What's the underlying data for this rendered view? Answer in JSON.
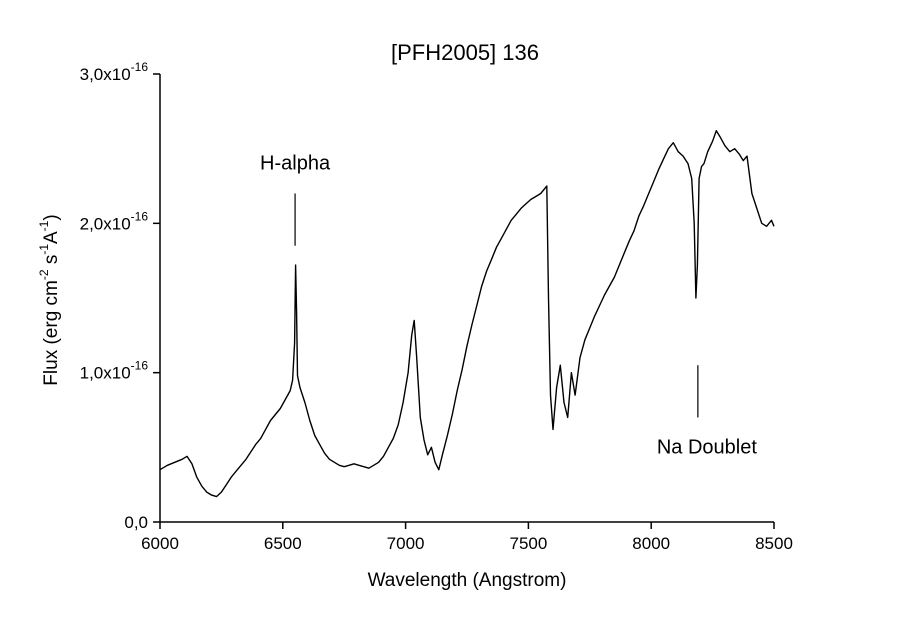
{
  "chart_data": {
    "type": "line",
    "title": "[PFH2005] 136",
    "xlabel": "Wavelength (Angstrom)",
    "ylabel": "Flux (erg cm",
    "ylabel_parts": [
      "Flux (erg cm",
      "-2",
      " s",
      "-1",
      "A",
      "-1",
      ")"
    ],
    "xlim": [
      6000,
      8500
    ],
    "ylim": [
      0,
      3e-16
    ],
    "x_ticks": [
      {
        "value": 6000,
        "label": "6000"
      },
      {
        "value": 6500,
        "label": "6500"
      },
      {
        "value": 7000,
        "label": "7000"
      },
      {
        "value": 7500,
        "label": "7500"
      },
      {
        "value": 8000,
        "label": "8000"
      },
      {
        "value": 8500,
        "label": "8500"
      }
    ],
    "y_ticks": [
      {
        "value": 0,
        "label": "0,0",
        "exp": ""
      },
      {
        "value": 1e-16,
        "label": "1,0x10",
        "exp": "-16"
      },
      {
        "value": 2e-16,
        "label": "2,0x10",
        "exp": "-16"
      },
      {
        "value": 3e-16,
        "label": "3,0x10",
        "exp": "-16"
      }
    ],
    "grid": false,
    "annotations": [
      {
        "text": "H-alpha",
        "x": 6550,
        "marker_y": [
          1.85e-16,
          2.2e-16
        ]
      },
      {
        "text": "Na Doublet",
        "x": 8190,
        "marker_y": [
          7e-17,
          1.05e-16
        ]
      }
    ],
    "series": [
      {
        "color": "#000000",
        "x": [
          6000,
          6030,
          6060,
          6090,
          6110,
          6130,
          6150,
          6170,
          6190,
          6210,
          6230,
          6250,
          6270,
          6290,
          6310,
          6330,
          6350,
          6370,
          6390,
          6410,
          6430,
          6450,
          6470,
          6490,
          6510,
          6530,
          6540,
          6548,
          6552,
          6556,
          6560,
          6570,
          6590,
          6610,
          6630,
          6650,
          6670,
          6690,
          6710,
          6730,
          6750,
          6770,
          6790,
          6810,
          6830,
          6850,
          6870,
          6890,
          6910,
          6930,
          6950,
          6970,
          6990,
          7010,
          7025,
          7035,
          7045,
          7060,
          7075,
          7090,
          7105,
          7120,
          7135,
          7150,
          7170,
          7190,
          7210,
          7230,
          7250,
          7270,
          7290,
          7310,
          7330,
          7350,
          7370,
          7390,
          7410,
          7430,
          7450,
          7470,
          7490,
          7510,
          7530,
          7550,
          7565,
          7575,
          7582,
          7590,
          7600,
          7615,
          7630,
          7645,
          7660,
          7675,
          7690,
          7710,
          7730,
          7750,
          7770,
          7790,
          7810,
          7830,
          7850,
          7870,
          7890,
          7910,
          7930,
          7950,
          7970,
          7990,
          8010,
          8030,
          8050,
          8070,
          8090,
          8110,
          8130,
          8150,
          8165,
          8175,
          8182,
          8188,
          8195,
          8205,
          8215,
          8230,
          8250,
          8265,
          8280,
          8300,
          8320,
          8340,
          8360,
          8375,
          8390,
          8410,
          8430,
          8450,
          8470,
          8490,
          8500
        ],
        "y": [
          3.5e-17,
          3.8e-17,
          4e-17,
          4.2e-17,
          4.4e-17,
          3.9e-17,
          3e-17,
          2.4e-17,
          2e-17,
          1.8e-17,
          1.7e-17,
          2e-17,
          2.5e-17,
          3e-17,
          3.4e-17,
          3.8e-17,
          4.2e-17,
          4.7e-17,
          5.2e-17,
          5.6e-17,
          6.2e-17,
          6.8e-17,
          7.2e-17,
          7.6e-17,
          8.2e-17,
          8.8e-17,
          9.5e-17,
          1.2e-16,
          1.72e-16,
          1.4e-16,
          9.8e-17,
          9e-17,
          8e-17,
          6.8e-17,
          5.8e-17,
          5.2e-17,
          4.6e-17,
          4.2e-17,
          4e-17,
          3.8e-17,
          3.7e-17,
          3.8e-17,
          3.9e-17,
          3.8e-17,
          3.7e-17,
          3.6e-17,
          3.8e-17,
          4e-17,
          4.4e-17,
          5e-17,
          5.6e-17,
          6.5e-17,
          8e-17,
          1e-16,
          1.25e-16,
          1.35e-16,
          1.1e-16,
          7e-17,
          5.5e-17,
          4.5e-17,
          5e-17,
          4e-17,
          3.5e-17,
          4.5e-17,
          5.8e-17,
          7.2e-17,
          8.8e-17,
          1.02e-16,
          1.18e-16,
          1.32e-16,
          1.45e-16,
          1.58e-16,
          1.68e-16,
          1.76e-16,
          1.84e-16,
          1.9e-16,
          1.96e-16,
          2.02e-16,
          2.06e-16,
          2.1e-16,
          2.13e-16,
          2.16e-16,
          2.18e-16,
          2.2e-16,
          2.23e-16,
          2.25e-16,
          1.5e-16,
          8.5e-17,
          6.2e-17,
          9e-17,
          1.05e-16,
          8e-17,
          7e-17,
          1e-16,
          8.5e-17,
          1.1e-16,
          1.22e-16,
          1.3e-16,
          1.38e-16,
          1.45e-16,
          1.52e-16,
          1.58e-16,
          1.64e-16,
          1.72e-16,
          1.8e-16,
          1.88e-16,
          1.95e-16,
          2.05e-16,
          2.12e-16,
          2.2e-16,
          2.28e-16,
          2.36e-16,
          2.43e-16,
          2.5e-16,
          2.54e-16,
          2.48e-16,
          2.45e-16,
          2.4e-16,
          2.3e-16,
          2e-16,
          1.5e-16,
          1.72e-16,
          2.3e-16,
          2.38e-16,
          2.4e-16,
          2.48e-16,
          2.55e-16,
          2.62e-16,
          2.58e-16,
          2.52e-16,
          2.48e-16,
          2.5e-16,
          2.46e-16,
          2.42e-16,
          2.45e-16,
          2.2e-16,
          2.1e-16,
          2e-16,
          1.98e-16,
          2.02e-16,
          1.98e-16
        ]
      }
    ]
  }
}
